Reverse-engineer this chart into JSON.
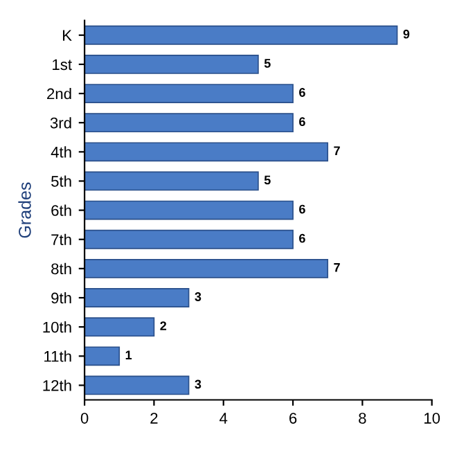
{
  "chart_data": {
    "type": "bar",
    "orientation": "horizontal",
    "ylabel": "Grades",
    "categories": [
      "K",
      "1st",
      "2nd",
      "3rd",
      "4th",
      "5th",
      "6th",
      "7th",
      "8th",
      "9th",
      "10th",
      "11th",
      "12th"
    ],
    "values": [
      9,
      5,
      6,
      6,
      7,
      5,
      6,
      6,
      7,
      3,
      2,
      1,
      3
    ],
    "color": "#4a7cc6",
    "xlim": [
      0,
      10
    ],
    "xticks": [
      0,
      2,
      4,
      6,
      8,
      10
    ],
    "data_labels": true,
    "grid": false,
    "legend": false
  }
}
